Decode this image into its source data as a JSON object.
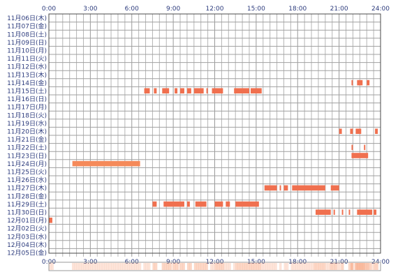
{
  "chart_data": {
    "type": "timeline",
    "x_ticks": [
      "0:00",
      "3:00",
      "6:00",
      "9:00",
      "12:00",
      "15:00",
      "18:00",
      "21:00",
      "24:00"
    ],
    "xlim": [
      0,
      24
    ],
    "rows": [
      "11月06日(木)",
      "11月07日(金)",
      "11月08日(土)",
      "11月09日(日)",
      "11月10日(月)",
      "11月11日(火)",
      "11月12日(水)",
      "11月13日(木)",
      "11月14日(金)",
      "11月15日(土)",
      "11月16日(日)",
      "11月17日(月)",
      "11月18日(火)",
      "11月19日(水)",
      "11月20日(木)",
      "11月21日(金)",
      "11月22日(土)",
      "11月23日(日)",
      "11月24日(月)",
      "11月25日(火)",
      "11月26日(水)",
      "11月27日(木)",
      "11月28日(金)",
      "11月29日(土)",
      "11月30日(日)",
      "12月01日(月)",
      "12月02日(火)",
      "12月03日(水)",
      "12月04日(木)",
      "12月05日(金)"
    ],
    "bar_color": "#f0704f",
    "alt_bar_color": "#f58a5a",
    "grid": true,
    "intervals": [
      {
        "row": 8,
        "start": 21.9,
        "end": 22.0
      },
      {
        "row": 8,
        "start": 22.3,
        "end": 22.7
      },
      {
        "row": 8,
        "start": 23.0,
        "end": 23.2
      },
      {
        "row": 9,
        "start": 6.9,
        "end": 7.3
      },
      {
        "row": 9,
        "start": 7.6,
        "end": 7.8
      },
      {
        "row": 9,
        "start": 8.2,
        "end": 8.7
      },
      {
        "row": 9,
        "start": 9.1,
        "end": 9.3
      },
      {
        "row": 9,
        "start": 9.5,
        "end": 9.8
      },
      {
        "row": 9,
        "start": 10.0,
        "end": 10.3
      },
      {
        "row": 9,
        "start": 10.5,
        "end": 11.2
      },
      {
        "row": 9,
        "start": 11.4,
        "end": 11.5
      },
      {
        "row": 9,
        "start": 11.8,
        "end": 12.6
      },
      {
        "row": 9,
        "start": 13.4,
        "end": 14.5
      },
      {
        "row": 9,
        "start": 14.6,
        "end": 15.4
      },
      {
        "row": 14,
        "start": 21.0,
        "end": 21.2
      },
      {
        "row": 14,
        "start": 21.8,
        "end": 22.0
      },
      {
        "row": 14,
        "start": 22.2,
        "end": 22.6
      },
      {
        "row": 14,
        "start": 23.6,
        "end": 23.8
      },
      {
        "row": 16,
        "start": 21.9,
        "end": 22.0
      },
      {
        "row": 16,
        "start": 22.8,
        "end": 22.9
      },
      {
        "row": 17,
        "start": 21.9,
        "end": 23.1
      },
      {
        "row": 18,
        "start": 1.7,
        "end": 6.6
      },
      {
        "row": 21,
        "start": 15.6,
        "end": 16.5
      },
      {
        "row": 21,
        "start": 16.7,
        "end": 16.8
      },
      {
        "row": 21,
        "start": 17.0,
        "end": 17.3
      },
      {
        "row": 21,
        "start": 17.6,
        "end": 20.0
      },
      {
        "row": 21,
        "start": 20.4,
        "end": 21.0
      },
      {
        "row": 23,
        "start": 7.5,
        "end": 7.8
      },
      {
        "row": 23,
        "start": 8.3,
        "end": 9.8
      },
      {
        "row": 23,
        "start": 10.0,
        "end": 10.2
      },
      {
        "row": 23,
        "start": 10.6,
        "end": 11.4
      },
      {
        "row": 23,
        "start": 12.0,
        "end": 12.6
      },
      {
        "row": 23,
        "start": 12.8,
        "end": 13.1
      },
      {
        "row": 23,
        "start": 13.5,
        "end": 15.2
      },
      {
        "row": 24,
        "start": 19.3,
        "end": 20.4
      },
      {
        "row": 24,
        "start": 20.6,
        "end": 20.7
      },
      {
        "row": 24,
        "start": 21.2,
        "end": 21.3
      },
      {
        "row": 24,
        "start": 21.7,
        "end": 21.8
      },
      {
        "row": 24,
        "start": 22.3,
        "end": 23.4
      },
      {
        "row": 24,
        "start": 23.5,
        "end": 23.7
      },
      {
        "row": 25,
        "start": 0.0,
        "end": 0.25
      }
    ]
  }
}
